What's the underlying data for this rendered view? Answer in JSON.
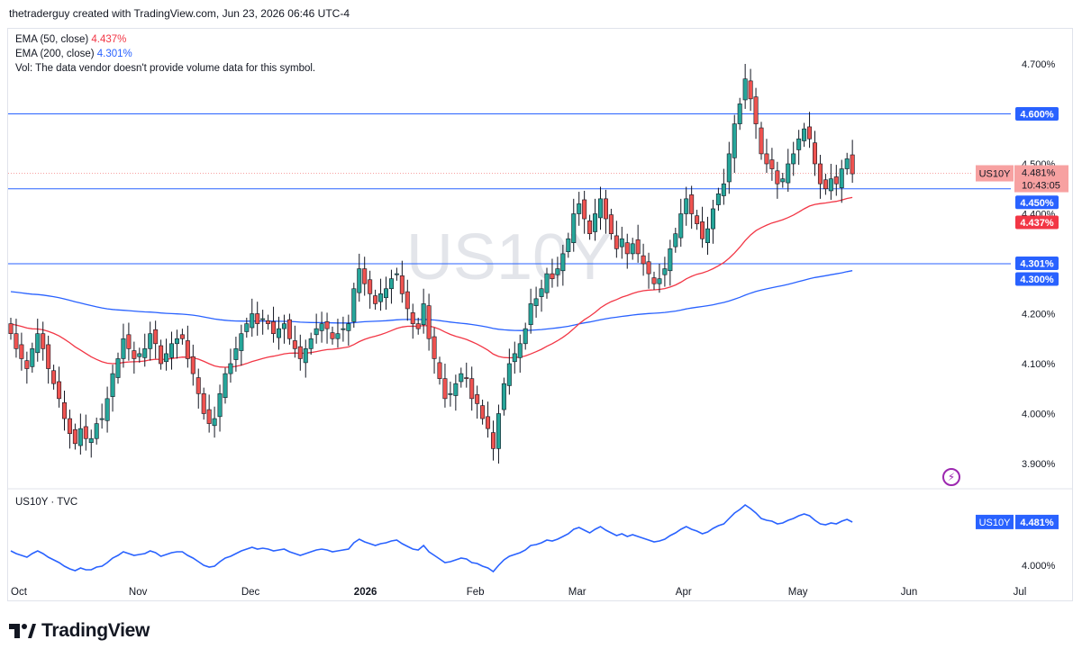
{
  "header": {
    "text": "thetraderguy created with TradingView.com, Jun 23, 2026 06:46 UTC-4"
  },
  "legend": {
    "ema50_label": "EMA (50, close)",
    "ema50_value": "4.437%",
    "ema200_label": "EMA (200, close)",
    "ema200_value": "4.301%",
    "vol_text": "Vol: The data vendor doesn't provide volume data for this symbol."
  },
  "watermark": "US10Y",
  "sub_pane": {
    "legend": "US10Y · TVC",
    "symbol_tag": "US10Y",
    "price_tag": "4.481%",
    "y_label": "4.000%"
  },
  "price_tags": {
    "symbol": "US10Y",
    "last": "4.481%",
    "countdown": "10:43:05",
    "level_4600": "4.600%",
    "level_4450": "4.450%",
    "ema50": "4.437%",
    "ema200": "4.301%",
    "level_4300": "4.300%"
  },
  "footer": {
    "brand": "TradingView"
  },
  "colors": {
    "up": "#26a69a",
    "down": "#ef5350",
    "ema50": "#f23645",
    "ema200": "#2962ff",
    "hline": "#2962ff",
    "line": "#2962ff",
    "last_tag": "#f7a1a1",
    "bolt": "#9c27b0"
  },
  "chart_data": {
    "type": "candlestick",
    "symbol": "US10Y",
    "y_ticks": [
      "4.700%",
      "4.600%",
      "4.500%",
      "4.400%",
      "4.300%",
      "4.200%",
      "4.100%",
      "4.000%",
      "3.900%"
    ],
    "y_tick_values": [
      4.7,
      4.6,
      4.5,
      4.4,
      4.3,
      4.2,
      4.1,
      4.0,
      3.9
    ],
    "ylim": [
      3.86,
      4.74
    ],
    "x_ticks": [
      "Oct",
      "Nov",
      "Dec",
      "2026",
      "Feb",
      "Mar",
      "Apr",
      "May",
      "Jun",
      "Jul"
    ],
    "x_tick_index": [
      0,
      22,
      43,
      64,
      85,
      104,
      124,
      145,
      166,
      187
    ],
    "horizontal_levels": [
      4.6,
      4.45,
      4.3
    ],
    "close": [
      4.16,
      4.13,
      4.11,
      4.09,
      4.13,
      4.16,
      4.13,
      4.09,
      4.06,
      4.03,
      3.99,
      3.96,
      3.94,
      3.97,
      3.95,
      3.95,
      3.98,
      3.99,
      4.03,
      4.08,
      4.11,
      4.15,
      4.13,
      4.11,
      4.12,
      4.13,
      4.16,
      4.14,
      4.1,
      4.12,
      4.14,
      4.15,
      4.15,
      4.11,
      4.08,
      4.04,
      4.0,
      3.98,
      3.99,
      4.04,
      4.08,
      4.1,
      4.13,
      4.16,
      4.18,
      4.2,
      4.18,
      4.19,
      4.18,
      4.16,
      4.17,
      4.18,
      4.15,
      4.13,
      4.11,
      4.13,
      4.15,
      4.17,
      4.18,
      4.17,
      4.15,
      4.16,
      4.17,
      4.18,
      4.25,
      4.29,
      4.26,
      4.24,
      4.22,
      4.24,
      4.25,
      4.27,
      4.28,
      4.24,
      4.21,
      4.18,
      4.17,
      4.22,
      4.15,
      4.11,
      4.07,
      4.03,
      4.04,
      4.06,
      4.08,
      4.07,
      4.03,
      4.02,
      3.99,
      3.97,
      3.93,
      4.0,
      4.06,
      4.1,
      4.12,
      4.14,
      4.17,
      4.22,
      4.23,
      4.25,
      4.28,
      4.27,
      4.29,
      4.32,
      4.35,
      4.4,
      4.42,
      4.39,
      4.36,
      4.4,
      4.43,
      4.39,
      4.36,
      4.33,
      4.35,
      4.32,
      4.34,
      4.32,
      4.3,
      4.28,
      4.26,
      4.27,
      4.29,
      4.33,
      4.36,
      4.4,
      4.43,
      4.4,
      4.38,
      4.35,
      4.37,
      4.41,
      4.44,
      4.46,
      4.52,
      4.58,
      4.62,
      4.67,
      4.63,
      4.58,
      4.52,
      4.5,
      4.49,
      4.46,
      4.47,
      4.5,
      4.52,
      4.55,
      4.57,
      4.55,
      4.5,
      4.46,
      4.45,
      4.47,
      4.46,
      4.49,
      4.51,
      4.48
    ],
    "ema50_last": 4.437,
    "ema200_last": 4.301,
    "last": 4.481
  }
}
